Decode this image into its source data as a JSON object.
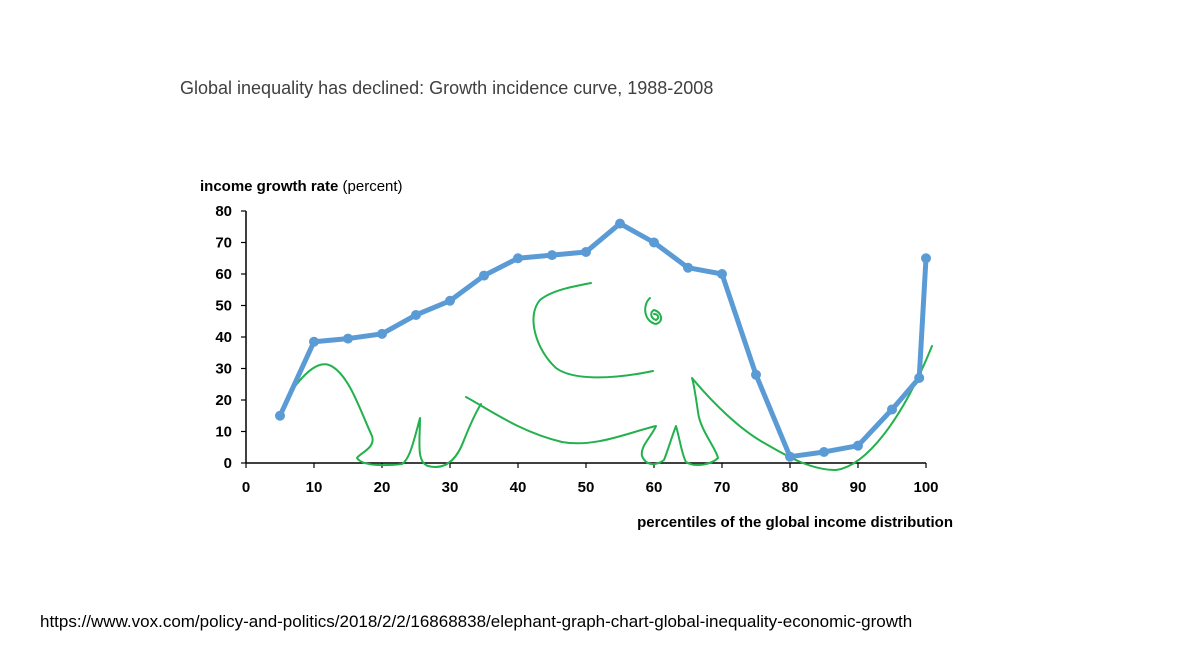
{
  "slide": {
    "title": "Global inequality has declined: Growth incidence curve, 1988-2008",
    "source_url": "https://www.vox.com/policy-and-politics/2018/2/2/16868838/elephant-graph-chart-global-inequality-economic-growth"
  },
  "chart_data": {
    "type": "line",
    "title": "",
    "ylabel_bold": "income growth rate",
    "ylabel_unit": "(percent)",
    "xlabel": "percentiles of the global income distribution",
    "xlim": [
      0,
      100
    ],
    "ylim": [
      0,
      80
    ],
    "xticks": [
      0,
      10,
      20,
      30,
      40,
      50,
      60,
      70,
      80,
      90,
      100
    ],
    "yticks": [
      0,
      10,
      20,
      30,
      40,
      50,
      60,
      70,
      80
    ],
    "grid": false,
    "series": [
      {
        "color": "#5B9BD5",
        "x": [
          5,
          10,
          15,
          20,
          25,
          30,
          35,
          40,
          45,
          50,
          55,
          60,
          65,
          70,
          75,
          80,
          85,
          90,
          95,
          99,
          100
        ],
        "values": [
          15,
          38.5,
          39.5,
          41,
          47,
          51.5,
          59.5,
          65,
          66,
          67,
          76,
          70,
          62,
          60,
          28,
          2,
          3.5,
          5.5,
          17,
          27,
          65
        ]
      }
    ],
    "annotation_color": "#22B14C"
  }
}
